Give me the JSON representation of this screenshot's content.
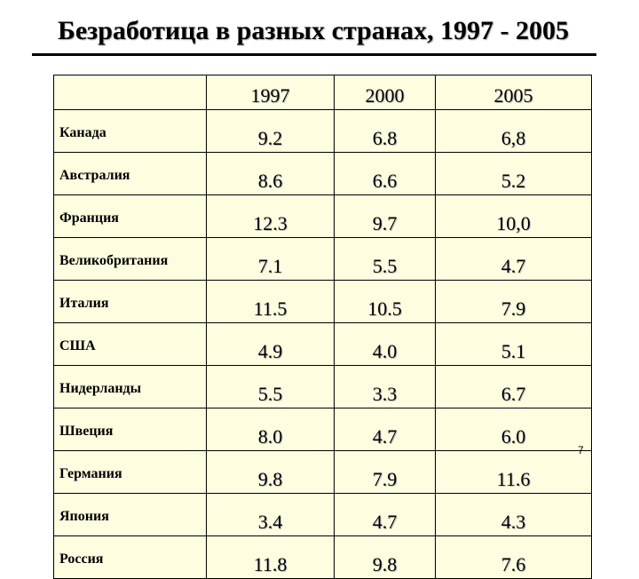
{
  "title": "Безработица в разных странах, 1997 - 2005",
  "years": [
    "1997",
    "2000",
    "2005"
  ],
  "rows": [
    {
      "country": "Канада",
      "values": [
        "9.2",
        "6.8",
        "6,8"
      ]
    },
    {
      "country": "Австралия",
      "values": [
        "8.6",
        "6.6",
        "5.2"
      ]
    },
    {
      "country": "Франция",
      "values": [
        "12.3",
        "9.7",
        "10,0"
      ]
    },
    {
      "country": "Великобритания",
      "values": [
        "7.1",
        "5.5",
        "4.7"
      ]
    },
    {
      "country": "Италия",
      "values": [
        "11.5",
        "10.5",
        "7.9"
      ]
    },
    {
      "country": "США",
      "values": [
        "4.9",
        "4.0",
        "5.1"
      ]
    },
    {
      "country": "Нидерланды",
      "values": [
        "5.5",
        "3.3",
        "6.7"
      ]
    },
    {
      "country": "Швеция",
      "values": [
        "8.0",
        "4.7",
        "6.0"
      ]
    },
    {
      "country": "Германия",
      "values": [
        "9.8",
        "7.9",
        "11.6"
      ]
    },
    {
      "country": "Япония",
      "values": [
        "3.4",
        "4.7",
        "4.3"
      ]
    },
    {
      "country": "Россия",
      "values": [
        "11.8",
        "9.8",
        "7.6"
      ]
    }
  ],
  "page_number": "7"
}
